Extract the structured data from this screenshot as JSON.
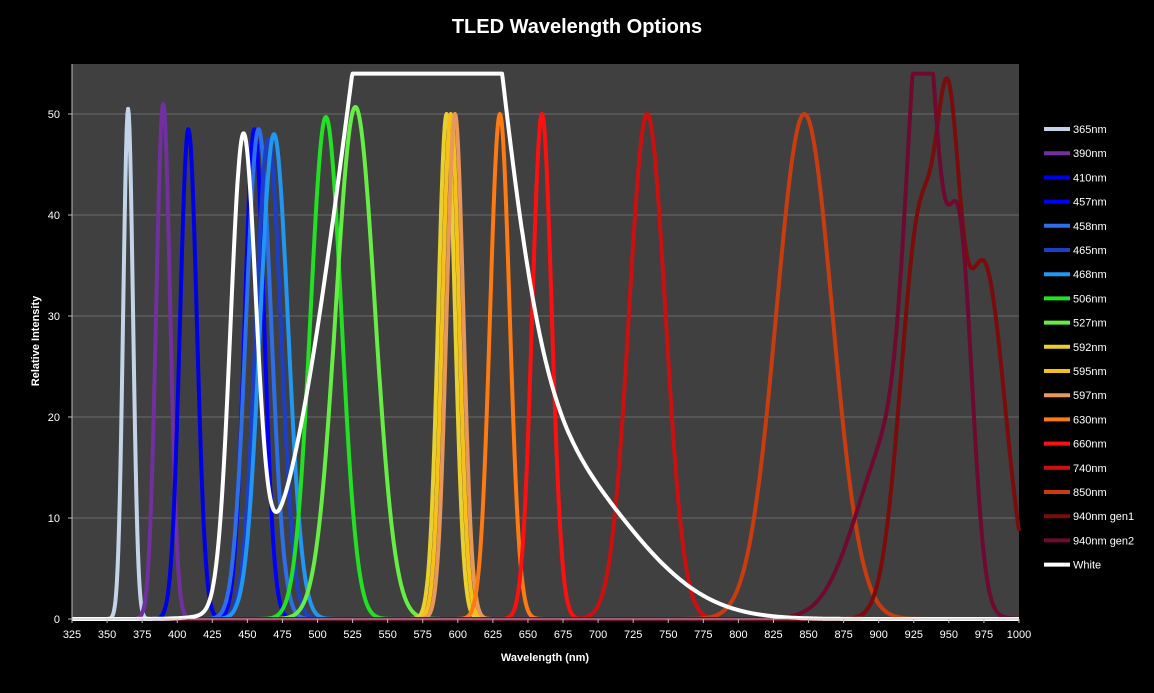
{
  "chart_data": {
    "type": "line",
    "title": "TLED  Wavelength Options",
    "xlabel": "Wavelength (nm)",
    "ylabel": "Relative Intensity",
    "xlim": [
      325,
      1000
    ],
    "ylim": [
      0,
      55
    ],
    "xticks": [
      325,
      350,
      375,
      400,
      425,
      450,
      475,
      500,
      525,
      550,
      575,
      600,
      625,
      650,
      675,
      700,
      725,
      750,
      775,
      800,
      825,
      850,
      875,
      900,
      925,
      950,
      975,
      1000
    ],
    "yticks": [
      0,
      10,
      20,
      30,
      40,
      50
    ],
    "grid": true,
    "legend_position": "right",
    "plot_background": "#404040",
    "series": [
      {
        "name": "365nm",
        "color": "#c4d4e8",
        "peaks": [
          [
            365,
            50.5,
            3.5
          ]
        ]
      },
      {
        "name": "390nm",
        "color": "#7030a0",
        "peaks": [
          [
            390,
            51,
            5
          ]
        ]
      },
      {
        "name": "410nm",
        "color": "#0000e6",
        "peaks": [
          [
            408,
            48.5,
            6
          ]
        ]
      },
      {
        "name": "457nm",
        "color": "#0000ff",
        "peaks": [
          [
            455,
            48.5,
            7
          ]
        ]
      },
      {
        "name": "458nm",
        "color": "#2c6fe8",
        "peaks": [
          [
            458,
            48.5,
            9
          ]
        ]
      },
      {
        "name": "465nm",
        "color": "#1c3fc8",
        "peaks": [
          [
            465,
            47.5,
            9
          ]
        ]
      },
      {
        "name": "468nm",
        "color": "#2196f3",
        "peaks": [
          [
            469,
            48,
            10
          ]
        ]
      },
      {
        "name": "506nm",
        "color": "#22e022",
        "peaks": [
          [
            506,
            49.7,
            11
          ]
        ]
      },
      {
        "name": "527nm",
        "color": "#66ee44",
        "peaks": [
          [
            527,
            50.7,
            14
          ]
        ]
      },
      {
        "name": "592nm",
        "color": "#e8d030",
        "peaks": [
          [
            592,
            50,
            6
          ]
        ]
      },
      {
        "name": "595nm",
        "color": "#f5c018",
        "peaks": [
          [
            595,
            50,
            6
          ]
        ]
      },
      {
        "name": "597nm",
        "color": "#e89858",
        "peaks": [
          [
            598,
            50,
            6
          ]
        ]
      },
      {
        "name": "630nm",
        "color": "#ff7a10",
        "peaks": [
          [
            630,
            50,
            7
          ]
        ]
      },
      {
        "name": "660nm",
        "color": "#ff1010",
        "peaks": [
          [
            660,
            50,
            7
          ]
        ]
      },
      {
        "name": "740nm",
        "color": "#cc1010",
        "peaks": [
          [
            735,
            50,
            13
          ]
        ]
      },
      {
        "name": "850nm",
        "color": "#c83c10",
        "peaks": [
          [
            847,
            50,
            20
          ]
        ]
      },
      {
        "name": "940nm gen1",
        "color": "#7a0c0c",
        "peaks": [
          [
            930,
            40,
            14
          ],
          [
            975,
            35,
            15
          ],
          [
            950,
            30,
            8
          ]
        ]
      },
      {
        "name": "940nm gen2",
        "color": "#6e0a30",
        "peaks": [
          [
            932,
            50,
            11
          ],
          [
            958,
            34,
            9
          ],
          [
            910,
            18,
            25
          ]
        ]
      },
      {
        "name": "White",
        "color": "#ffffff",
        "peaks": [
          [
            447,
            45.5,
            9
          ],
          [
            540,
            34,
            40
          ],
          [
            575,
            44,
            40
          ],
          [
            605,
            29,
            30
          ],
          [
            640,
            14,
            55
          ],
          [
            700,
            5,
            50
          ]
        ]
      }
    ]
  }
}
